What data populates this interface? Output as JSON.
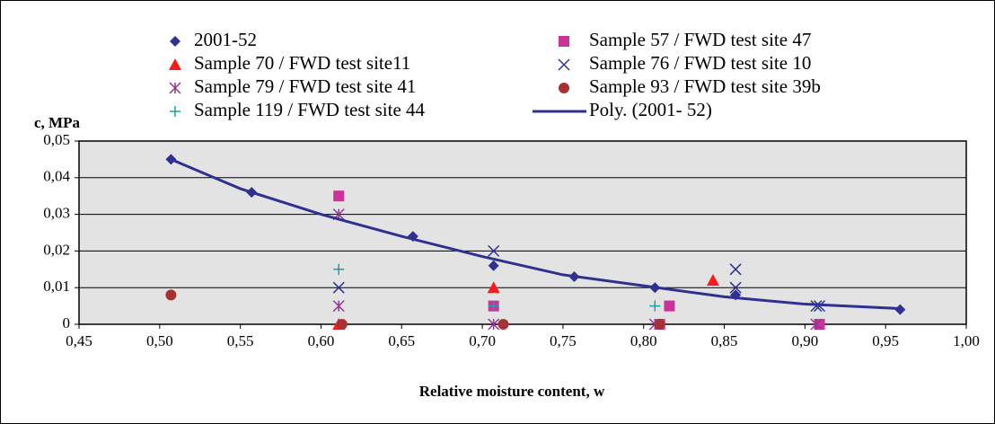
{
  "chart_data": {
    "type": "scatter",
    "y_label": "c, MPa",
    "x_label": "Relative moisture content, w",
    "xlim": [
      0.45,
      1.0
    ],
    "ylim": [
      0,
      0.05
    ],
    "xticks": [
      {
        "value": 0.45,
        "label": "0,45"
      },
      {
        "value": 0.5,
        "label": "0,50"
      },
      {
        "value": 0.55,
        "label": "0,55"
      },
      {
        "value": 0.6,
        "label": "0,60"
      },
      {
        "value": 0.65,
        "label": "0,65"
      },
      {
        "value": 0.7,
        "label": "0,70"
      },
      {
        "value": 0.75,
        "label": "0,75"
      },
      {
        "value": 0.8,
        "label": "0,80"
      },
      {
        "value": 0.85,
        "label": "0,85"
      },
      {
        "value": 0.9,
        "label": "0,90"
      },
      {
        "value": 0.95,
        "label": "0,95"
      },
      {
        "value": 1.0,
        "label": "1,00"
      }
    ],
    "yticks": [
      0,
      {
        "value": 0.01,
        "label": "0,01"
      },
      {
        "value": 0.02,
        "label": "0,02"
      },
      {
        "value": 0.03,
        "label": "0,03"
      },
      {
        "value": 0.04,
        "label": "0,04"
      },
      {
        "value": 0.05,
        "label": "0,05"
      }
    ],
    "grid": true,
    "series": [
      {
        "name": "2001-52",
        "color": "#2e3192",
        "marker": "diamond",
        "x": [
          0.507,
          0.557,
          0.657,
          0.707,
          0.757,
          0.807,
          0.857,
          0.959
        ],
        "values": [
          0.045,
          0.036,
          0.024,
          0.016,
          0.013,
          0.01,
          0.008,
          0.004
        ]
      },
      {
        "name": "Sample 57 / FWD test site 47",
        "color": "#cc3399",
        "marker": "square",
        "x": [
          0.611,
          0.707,
          0.81,
          0.816,
          0.909
        ],
        "values": [
          0.035,
          0.005,
          0,
          0.005,
          0
        ]
      },
      {
        "name": "Sample 70 / FWD test site11",
        "color": "#ff1a1a",
        "marker": "triangle",
        "x": [
          0.611,
          0.707,
          0.843
        ],
        "values": [
          0,
          0.01,
          0.012
        ]
      },
      {
        "name": "Sample 76 / FWD test site 10",
        "color": "#2e3192",
        "marker": "cross",
        "x": [
          0.611,
          0.707,
          0.857,
          0.857,
          0.907,
          0.909
        ],
        "values": [
          0.01,
          0.02,
          0.015,
          0.01,
          0.005,
          0.005
        ]
      },
      {
        "name": "Sample 79 / FWD test site 41",
        "color": "#993399",
        "marker": "star",
        "x": [
          0.611,
          0.611,
          0.707,
          0.807,
          0.907
        ],
        "values": [
          0.03,
          0.005,
          0,
          0,
          0
        ]
      },
      {
        "name": "Sample 93 / FWD test site 39b",
        "color": "#a83232",
        "marker": "circle",
        "x": [
          0.507,
          0.613,
          0.713,
          0.81
        ],
        "values": [
          0.008,
          0,
          0,
          0
        ]
      },
      {
        "name": "Sample 119 / FWD test site 44",
        "color": "#16a3a3",
        "marker": "plus",
        "x": [
          0.611,
          0.707,
          0.807
        ],
        "values": [
          0.015,
          0.005,
          0.005
        ]
      },
      {
        "name": "Poly. (2001- 52)",
        "color": "#2e3192",
        "marker": "line",
        "x": [
          0.507,
          0.55,
          0.6,
          0.65,
          0.7,
          0.75,
          0.8,
          0.85,
          0.9,
          0.959
        ],
        "values": [
          0.045,
          0.037,
          0.03,
          0.024,
          0.0185,
          0.0135,
          0.0105,
          0.0075,
          0.0055,
          0.0043
        ]
      }
    ]
  }
}
